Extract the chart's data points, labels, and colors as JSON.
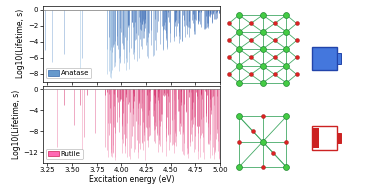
{
  "xlim": [
    3.2,
    5.0
  ],
  "anatase_ylim": [
    -9,
    0.5
  ],
  "rutile_ylim": [
    -14,
    0.5
  ],
  "anatase_yticks": [
    0,
    -2,
    -4,
    -6,
    -8
  ],
  "rutile_yticks": [
    0,
    -4,
    -8,
    -12
  ],
  "xlabel": "Excitation energy (eV)",
  "anatase_ylabel": "Log10(Lifetime, s)",
  "rutile_ylabel": "Log10(Lifetime, s)",
  "anatase_label": "Anatase",
  "rutile_label": "Rutile",
  "anatase_color_base": "#5588cc",
  "anatase_color_light": "#aac8e8",
  "rutile_color_base": "#ee3377",
  "rutile_color_light": "#f5a0c0",
  "background_color": "#ffffff",
  "tick_fontsize": 5.0,
  "label_fontsize": 5.5,
  "legend_fontsize": 5.0,
  "ti_color": "#44cc44",
  "ti_edge": "#228833",
  "o_color": "#dd2222",
  "o_edge": "#991111",
  "bond_color": "#44aa66"
}
